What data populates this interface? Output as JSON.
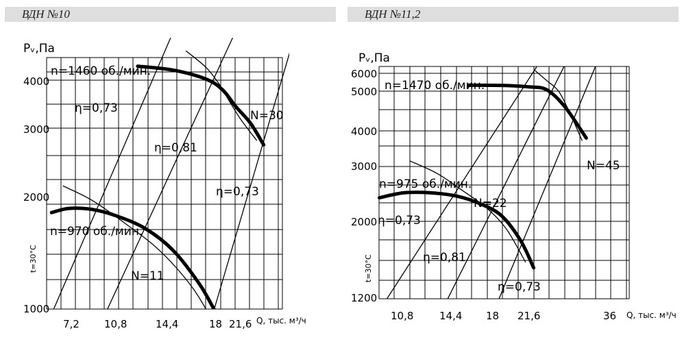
{
  "charts": [
    {
      "header": "ВДН №10",
      "ylabel": "Pᵥ,Па",
      "side_label": "t=30°C",
      "xlabel": "Q, тыс. м³/ч",
      "x_ticks": [
        "7,2",
        "10,8",
        "14,4",
        "18",
        "21,6"
      ],
      "y_ticks": [
        "4000",
        "3000",
        "2000",
        "1000"
      ]
    },
    {
      "header": "ВДН №11,2",
      "ylabel": "Pᵥ,Па",
      "side_label": "t=30°C",
      "xlabel": "Q, тыс. м³/ч",
      "x_ticks": [
        "10,8",
        "14,4",
        "18",
        "21,6",
        "36"
      ],
      "y_ticks": [
        "6000",
        "5000",
        "4000",
        "3000",
        "2000",
        "1200"
      ]
    }
  ],
  "chart_data": [
    {
      "type": "line",
      "title": "ВДН №10",
      "xlabel": "Q, тыс. м³/ч",
      "ylabel": "Pᵥ,Па",
      "x_ticks": [
        7.2,
        10.8,
        14.4,
        18,
        21.6
      ],
      "y_ticks": [
        1000,
        2000,
        3000,
        4000
      ],
      "grid": true,
      "annotations": [
        "n=1460 об./мин.",
        "n=970 об./мин.",
        "η=0,73",
        "η=0,81",
        "η=0,73",
        "N=30",
        "N=11"
      ],
      "series": [
        {
          "name": "n=1460 об./мин.",
          "x": [
            12.5,
            15,
            17.5,
            19.5,
            21.5,
            23,
            24.3
          ],
          "y": [
            4250,
            4180,
            4020,
            3800,
            3450,
            3100,
            2780
          ]
        },
        {
          "name": "n=970 об./мин.",
          "x": [
            5.5,
            7,
            9,
            11,
            13,
            15,
            17,
            18.3
          ],
          "y": [
            1920,
            1960,
            1950,
            1890,
            1770,
            1560,
            1240,
            990
          ]
        },
        {
          "name": "N=30",
          "x": [
            16,
            17.5,
            19,
            20.5,
            22,
            23.6
          ],
          "y": [
            4520,
            4230,
            3920,
            3570,
            3190,
            2840
          ]
        },
        {
          "name": "N=11",
          "x": [
            6.5,
            9,
            11.5,
            14,
            16.5,
            18.6
          ],
          "y": [
            2240,
            2050,
            1830,
            1560,
            1200,
            820
          ]
        },
        {
          "name": "η=0,73",
          "x": [
            5.3,
            14.8
          ],
          "y": [
            900,
            4750
          ]
        },
        {
          "name": "η=0,81",
          "x": [
            9.9,
            21.0
          ],
          "y": [
            900,
            4750
          ]
        },
        {
          "name": "η=0,73",
          "x": [
            17.9,
            27.3
          ],
          "y": [
            900,
            4750
          ]
        }
      ]
    },
    {
      "type": "line",
      "title": "ВДН №11,2",
      "xlabel": "Q, тыс. м³/ч",
      "ylabel": "Pᵥ,Па",
      "x_ticks": [
        10.8,
        14.4,
        18,
        21.6,
        36
      ],
      "y_ticks": [
        1200,
        2000,
        3000,
        4000,
        5000,
        6000
      ],
      "grid": true,
      "annotations": [
        "n=1470 об./мин.",
        "n=975 об./мин.",
        "N=45",
        "N=22",
        "η=0,73",
        "η=0,81",
        "η=0,73"
      ],
      "series": [
        {
          "name": "n=1470 об./мин.",
          "x": [
            16,
            19,
            22,
            25,
            28,
            31.5
          ],
          "y": [
            5330,
            5320,
            5240,
            5070,
            4600,
            3800
          ]
        },
        {
          "name": "n=975 об./мин.",
          "x": [
            9.2,
            11,
            13,
            15,
            17,
            19,
            21,
            22.8
          ],
          "y": [
            2430,
            2520,
            2520,
            2460,
            2320,
            2100,
            1800,
            1520
          ]
        },
        {
          "name": "N=45",
          "x": [
            23,
            25,
            27,
            29,
            30.8
          ],
          "y": [
            6180,
            5580,
            4980,
            4380,
            3730
          ]
        },
        {
          "name": "N=22",
          "x": [
            11.5,
            13.5,
            15.5,
            17.5,
            19.5,
            21.5
          ],
          "y": [
            3150,
            2870,
            2560,
            2250,
            1920,
            1580
          ]
        },
        {
          "name": "η=0,73",
          "x": [
            9.3,
            23.3
          ],
          "y": [
            1100,
            6400
          ]
        },
        {
          "name": "η=0,81",
          "x": [
            13.9,
            27.8
          ],
          "y": [
            1100,
            6400
          ]
        },
        {
          "name": "η=0,73",
          "x": [
            18.3,
            33.0
          ],
          "y": [
            1100,
            6400
          ]
        }
      ]
    }
  ]
}
